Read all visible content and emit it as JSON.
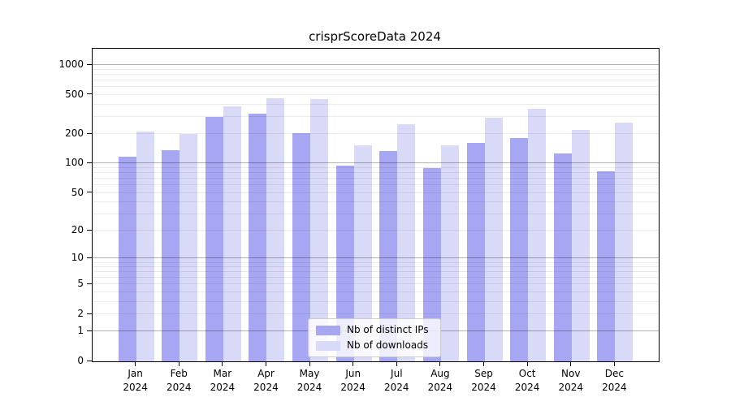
{
  "figure": {
    "background_color": "#ffffff",
    "axis_color": "#000000"
  },
  "chart_data": {
    "type": "bar",
    "title": "crisprScoreData 2024",
    "categories": [
      "Jan",
      "Feb",
      "Mar",
      "Apr",
      "May",
      "Jun",
      "Jul",
      "Aug",
      "Sep",
      "Oct",
      "Nov",
      "Dec"
    ],
    "year": "2024",
    "series": [
      {
        "name": "Nb of distinct IPs",
        "color": "#a6a6f2",
        "values": [
          117,
          136,
          297,
          323,
          203,
          95,
          135,
          90,
          163,
          183,
          126,
          84
        ]
      },
      {
        "name": "Nb of downloads",
        "color": "#d9d9f8",
        "values": [
          214,
          200,
          384,
          463,
          457,
          153,
          254,
          153,
          295,
          360,
          219,
          262
        ]
      }
    ],
    "xlabel": "",
    "ylabel": "",
    "yscale": "log1p",
    "y_ticks": [
      0,
      1,
      2,
      5,
      10,
      20,
      50,
      100,
      200,
      500,
      1000
    ],
    "ylim": [
      0,
      1450
    ],
    "grid": true,
    "grid_minor": true,
    "legend_position": "inside-bottom-center"
  }
}
